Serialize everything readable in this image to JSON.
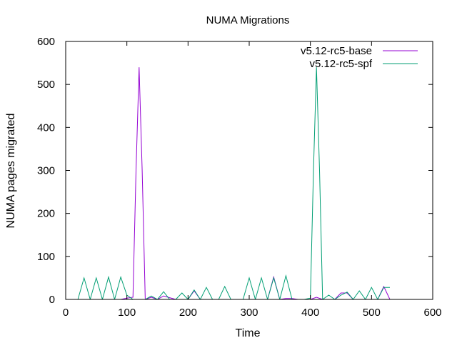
{
  "chart_data": {
    "type": "line",
    "title": "NUMA Migrations",
    "xlabel": "Time",
    "ylabel": "NUMA pages migrated",
    "xlim": [
      0,
      600
    ],
    "ylim": [
      0,
      600
    ],
    "xticks": [
      0,
      100,
      200,
      300,
      400,
      500,
      600
    ],
    "yticks": [
      0,
      100,
      200,
      300,
      400,
      500,
      600
    ],
    "grid": false,
    "legend_position": "top-right",
    "series": [
      {
        "name": "v5.12-rc5-base",
        "color": "#9400d3",
        "x": [
          0,
          90,
          100,
          110,
          115,
          120,
          125,
          130,
          140,
          150,
          160,
          170,
          180,
          190,
          200,
          210,
          220,
          230,
          240,
          250,
          260,
          270,
          280,
          290,
          300,
          310,
          320,
          330,
          340,
          350,
          360,
          370,
          380,
          390,
          400,
          410,
          420,
          430,
          440,
          450,
          460,
          470,
          480,
          490,
          500,
          510,
          520,
          530
        ],
        "y": [
          0,
          0,
          3,
          5,
          300,
          540,
          300,
          0,
          5,
          0,
          8,
          4,
          0,
          0,
          0,
          20,
          0,
          0,
          0,
          0,
          0,
          0,
          0,
          0,
          0,
          0,
          0,
          0,
          52,
          0,
          2,
          2,
          0,
          0,
          0,
          5,
          0,
          0,
          0,
          15,
          15,
          0,
          0,
          0,
          0,
          0,
          30,
          0
        ]
      },
      {
        "name": "v5.12-rc5-spf",
        "color": "#009e73",
        "x": [
          20,
          30,
          40,
          50,
          60,
          70,
          80,
          90,
          100,
          110,
          120,
          130,
          140,
          150,
          160,
          170,
          180,
          190,
          200,
          210,
          220,
          230,
          240,
          250,
          260,
          270,
          280,
          290,
          300,
          310,
          320,
          330,
          340,
          350,
          360,
          370,
          380,
          390,
          400,
          405,
          410,
          415,
          420,
          430,
          440,
          450,
          460,
          470,
          480,
          490,
          500,
          510,
          520,
          530
        ],
        "y": [
          0,
          50,
          0,
          50,
          0,
          52,
          0,
          52,
          10,
          0,
          0,
          0,
          8,
          0,
          18,
          0,
          0,
          15,
          0,
          22,
          0,
          28,
          0,
          0,
          30,
          0,
          0,
          0,
          50,
          0,
          50,
          0,
          50,
          0,
          55,
          0,
          0,
          0,
          3,
          300,
          540,
          300,
          0,
          10,
          0,
          10,
          17,
          0,
          20,
          0,
          28,
          0,
          28,
          28
        ]
      }
    ]
  }
}
